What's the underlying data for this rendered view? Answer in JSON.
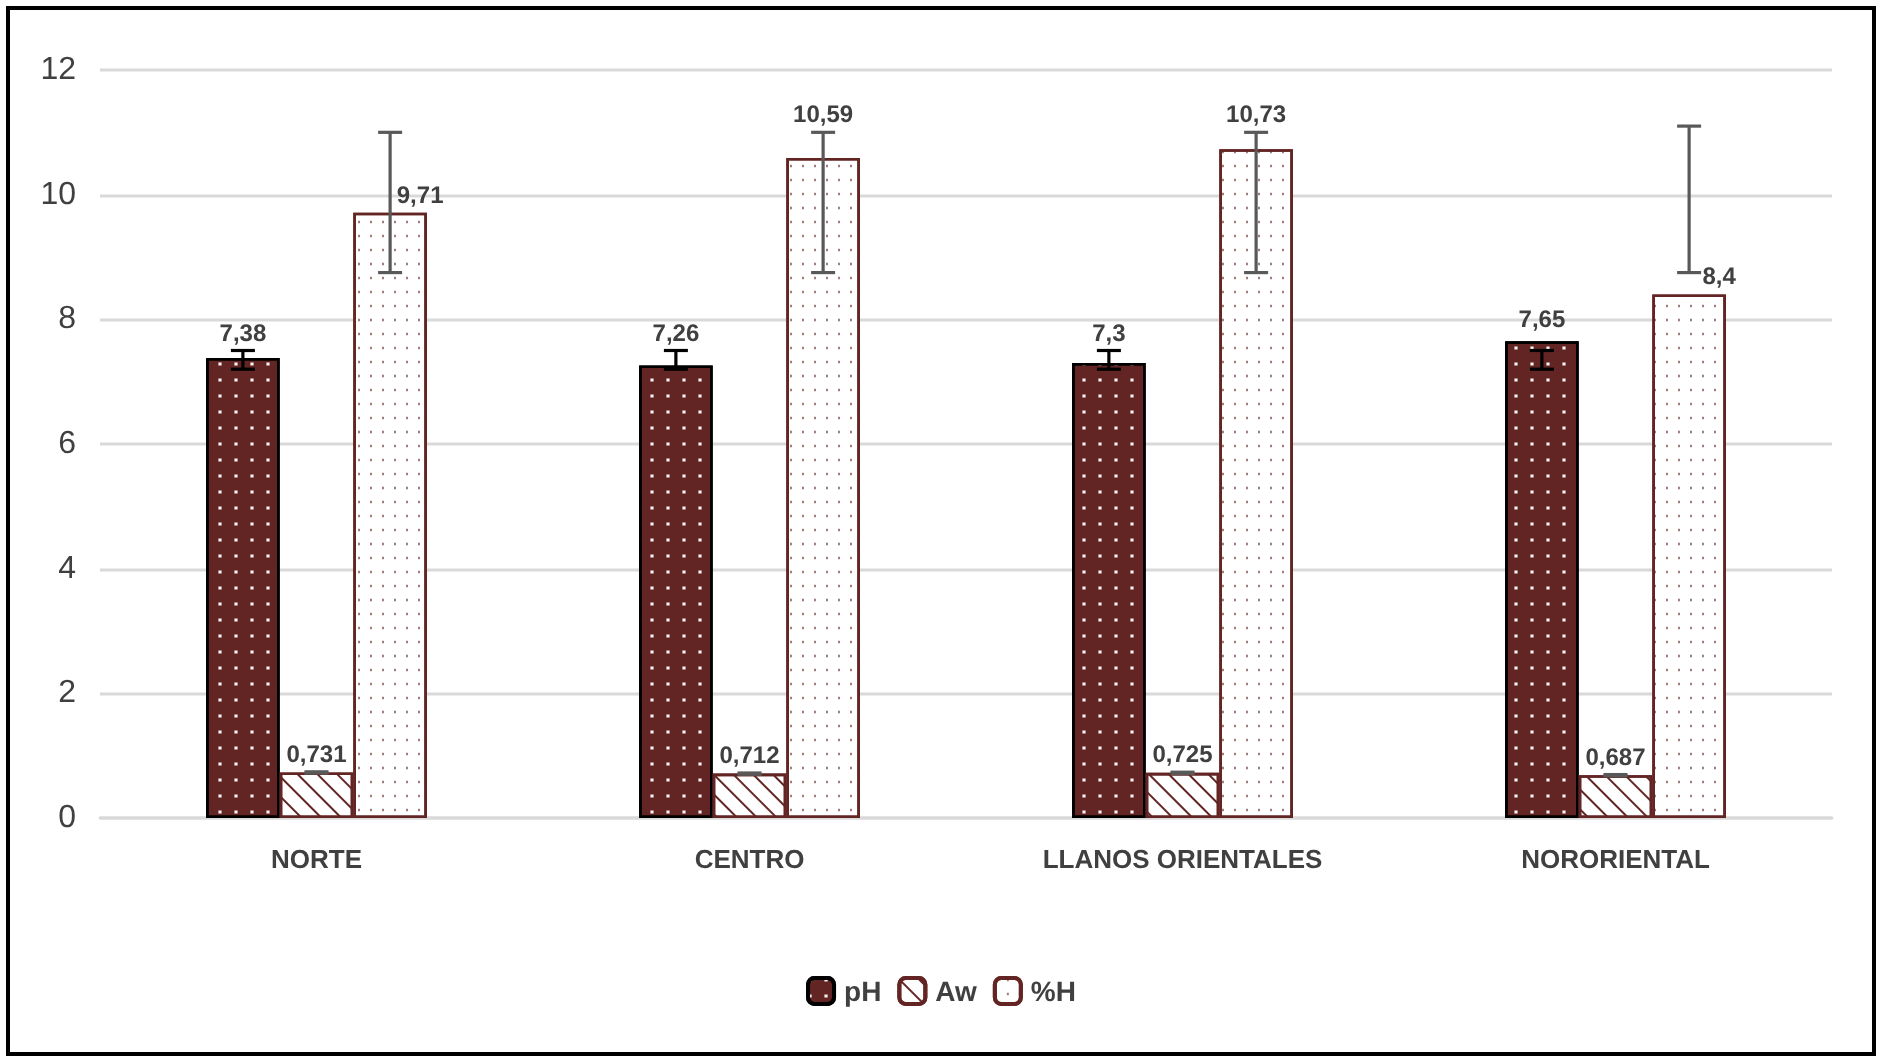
{
  "chart_data": {
    "type": "bar",
    "categories": [
      "NORTE",
      "CENTRO",
      "LLANOS ORIENTALES",
      "NORORIENTAL"
    ],
    "series": [
      {
        "name": "pH",
        "color": "#632523",
        "values": [
          7.38,
          7.26,
          7.3,
          7.65
        ],
        "value_labels": [
          "7,38",
          "7,26",
          "7,3",
          "7,65"
        ],
        "errors": [
          [
            7.2,
            7.5
          ],
          [
            7.2,
            7.5
          ],
          [
            7.2,
            7.5
          ],
          [
            7.2,
            7.5
          ]
        ]
      },
      {
        "name": "Aw",
        "color": "#632523",
        "values": [
          0.731,
          0.712,
          0.725,
          0.687
        ],
        "value_labels": [
          "0,731",
          "0,712",
          "0,725",
          "0,687"
        ],
        "errors": [
          0.01,
          0.01,
          0.01,
          0.01
        ]
      },
      {
        "name": "%H",
        "color": "#632523",
        "values": [
          9.71,
          10.59,
          10.73,
          8.4
        ],
        "value_labels": [
          "9,71",
          "10,59",
          "10,73",
          "8,4"
        ],
        "errors": [
          [
            8.75,
            11.0
          ],
          [
            8.75,
            11.0
          ],
          [
            8.75,
            11.0
          ],
          [
            8.75,
            11.1
          ]
        ]
      }
    ],
    "ylim": [
      0,
      12
    ],
    "yticks": [
      0,
      2,
      4,
      6,
      8,
      10,
      12
    ],
    "grid": "y",
    "legend": "bottom"
  }
}
